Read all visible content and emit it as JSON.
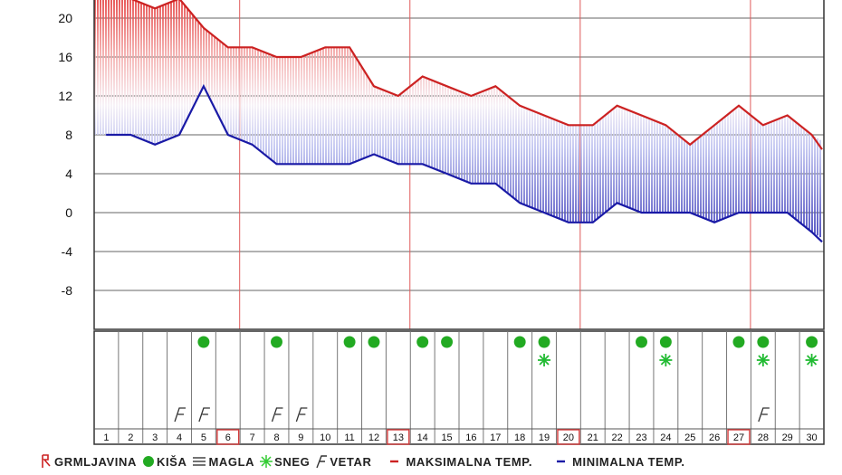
{
  "chart_data": {
    "type": "line",
    "title": "",
    "xlabel": "",
    "ylabel": "",
    "ylim": [
      -12,
      22
    ],
    "yticks": [
      20,
      16,
      12,
      8,
      4,
      0,
      -4,
      -8
    ],
    "x": [
      1,
      2,
      3,
      4,
      5,
      6,
      7,
      8,
      9,
      10,
      11,
      12,
      13,
      14,
      15,
      16,
      17,
      18,
      19,
      20,
      21,
      22,
      23,
      24,
      25,
      26,
      27,
      28,
      29,
      30
    ],
    "series": [
      {
        "name": "MAKSIMALNA TEMP.",
        "color": "#cc2222",
        "values": [
          22,
          22,
          21,
          22,
          19,
          17,
          17,
          16,
          16,
          17,
          17,
          13,
          12,
          14,
          13,
          12,
          13,
          11,
          10,
          9,
          9,
          11,
          10,
          9,
          7,
          9,
          11,
          9,
          10,
          8
        ]
      },
      {
        "name": "MINIMALNA TEMP.",
        "color": "#1a1aa6",
        "values": [
          8,
          8,
          7,
          8,
          13,
          8,
          7,
          5,
          5,
          5,
          5,
          6,
          5,
          5,
          4,
          3,
          3,
          1,
          0,
          -1,
          -1,
          1,
          0,
          0,
          0,
          -1,
          0,
          0,
          0,
          -2
        ]
      }
    ],
    "weekend_highlight_days": [
      6,
      13,
      20,
      27
    ],
    "vertical_gridline_after_days": [
      6,
      13,
      20,
      27
    ],
    "weather": {
      "rain_days": [
        5,
        8,
        11,
        12,
        14,
        15,
        18,
        19,
        23,
        24,
        27,
        28,
        30
      ],
      "snow_days": [
        19,
        24,
        28,
        30
      ],
      "wind_days": [
        4,
        5,
        8,
        9,
        28
      ]
    },
    "legend": [
      {
        "icon": "thunderstorm-icon",
        "label": "GRMLJAVINA",
        "color": "#cc2222"
      },
      {
        "icon": "rain-icon",
        "label": "KIŠA",
        "color": "#22aa22"
      },
      {
        "icon": "fog-icon",
        "label": "MAGLA",
        "color": "#444444"
      },
      {
        "icon": "snow-icon",
        "label": "SNEG",
        "color": "#33cc33"
      },
      {
        "icon": "wind-icon",
        "label": "VETAR",
        "color": "#333333"
      },
      {
        "icon": "max-temp-line-icon",
        "label": "MAKSIMALNA TEMP.",
        "color": "#cc2222"
      },
      {
        "icon": "min-temp-line-icon",
        "label": "MINIMALNA TEMP.",
        "color": "#1a1aa6"
      }
    ]
  }
}
